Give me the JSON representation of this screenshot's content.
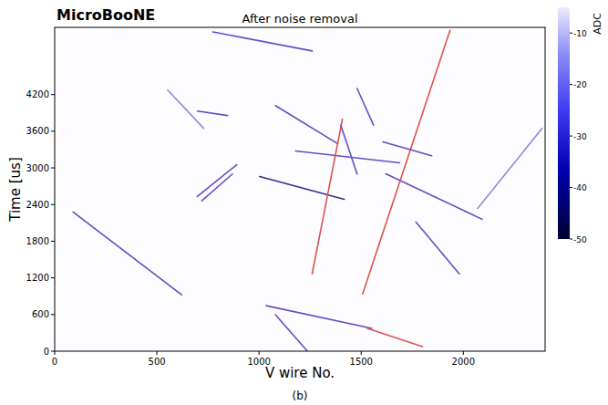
{
  "chart_data": {
    "type": "event_display",
    "brand": "MicroBooNE",
    "title": "After noise removal",
    "x_label": "V wire No.",
    "y_label": "Time [us]",
    "caption": "(b)",
    "xlim": [
      0,
      2400
    ],
    "ylim": [
      0,
      5300
    ],
    "xticks": [
      0,
      500,
      1000,
      1500,
      2000
    ],
    "yticks": [
      0,
      600,
      1200,
      1800,
      2400,
      3000,
      3600,
      4200
    ],
    "colorbar": {
      "label": "ADC",
      "range": [
        -50,
        -5
      ],
      "ticks": [
        -10,
        -20,
        -30,
        -40,
        -50
      ]
    },
    "tracks": [
      {
        "x": [
          90,
          621
        ],
        "y": [
          2278,
          923
        ],
        "color": "#6a4bc4"
      },
      {
        "x": [
          553,
          729
        ],
        "y": [
          4274,
          3648
        ],
        "color": "#9a86d8"
      },
      {
        "x": [
          698,
          891
        ],
        "y": [
          2531,
          3052
        ],
        "color": "#6a4bc4"
      },
      {
        "x": [
          720,
          870
        ],
        "y": [
          2460,
          2900
        ],
        "color": "#6a4bc4"
      },
      {
        "x": [
          774,
          1260
        ],
        "y": [
          5226,
          4914
        ],
        "color": "#6a4bc4"
      },
      {
        "x": [
          698,
          846
        ],
        "y": [
          3931,
          3857
        ],
        "color": "#6a4bc4"
      },
      {
        "x": [
          1003,
          1417
        ],
        "y": [
          2859,
          2487
        ],
        "color": "#3b2a8f"
      },
      {
        "x": [
          1179,
          1688
        ],
        "y": [
          3276,
          3082
        ],
        "color": "#6a4bc4"
      },
      {
        "x": [
          1080,
          1386
        ],
        "y": [
          4020,
          3395
        ],
        "color": "#6a4bc4"
      },
      {
        "x": [
          1260,
          1408
        ],
        "y": [
          1265,
          3797
        ],
        "color": "#d9534f"
      },
      {
        "x": [
          1507,
          1935
        ],
        "y": [
          938,
          5256
        ],
        "color": "#d9534f"
      },
      {
        "x": [
          1606,
          1845
        ],
        "y": [
          3425,
          3200
        ],
        "color": "#6a4bc4"
      },
      {
        "x": [
          1620,
          2092
        ],
        "y": [
          2904,
          2159
        ],
        "color": "#6a4bc4"
      },
      {
        "x": [
          1768,
          1980
        ],
        "y": [
          2114,
          1266
        ],
        "color": "#6a4bc4"
      },
      {
        "x": [
          2070,
          2385
        ],
        "y": [
          2338,
          3648
        ],
        "color": "#9a86d8"
      },
      {
        "x": [
          1035,
          1552
        ],
        "y": [
          745,
          372
        ],
        "color": "#6a4bc4"
      },
      {
        "x": [
          1080,
          1237
        ],
        "y": [
          596,
          0
        ],
        "color": "#6a4bc4"
      },
      {
        "x": [
          1530,
          1800
        ],
        "y": [
          372,
          75
        ],
        "color": "#d9534f"
      },
      {
        "x": [
          1400,
          1480
        ],
        "y": [
          3700,
          2900
        ],
        "color": "#6a4bc4"
      },
      {
        "x": [
          1480,
          1560
        ],
        "y": [
          4300,
          3700
        ],
        "color": "#6a4bc4"
      }
    ]
  }
}
